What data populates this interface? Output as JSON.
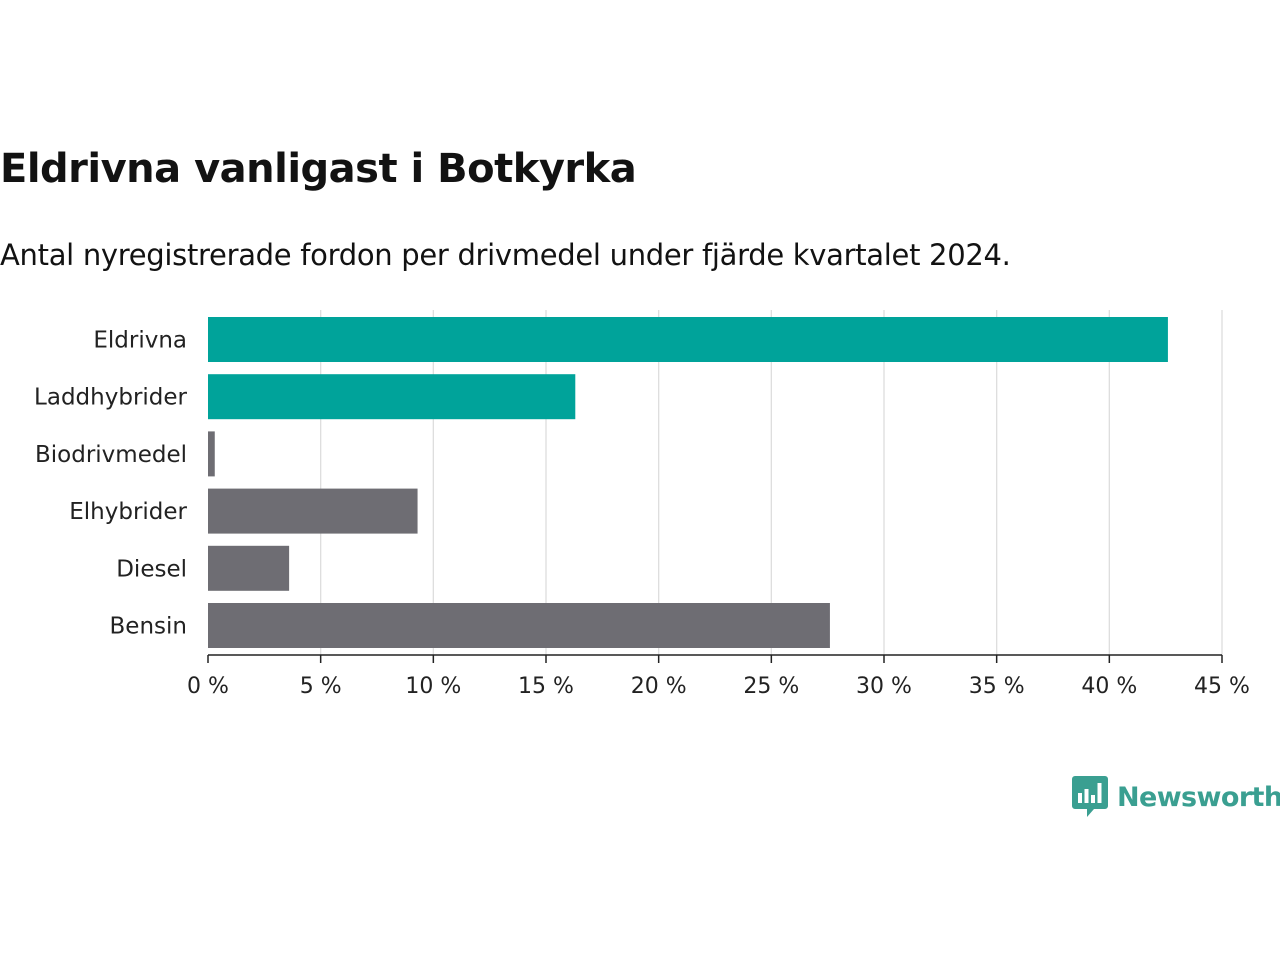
{
  "chart_data": {
    "type": "bar",
    "orientation": "horizontal",
    "title": "Eldrivna vanligast i Botkyrka",
    "subtitle": "Antal nyregistrerade fordon per drivmedel under fjärde kvartalet 2024.",
    "categories": [
      "Eldrivna",
      "Laddhybrider",
      "Biodrivmedel",
      "Elhybrider",
      "Diesel",
      "Bensin"
    ],
    "values": [
      42.6,
      16.3,
      0.3,
      9.3,
      3.6,
      27.6
    ],
    "highlight": [
      true,
      true,
      false,
      false,
      false,
      false
    ],
    "xlim": [
      0,
      45
    ],
    "xticks": [
      0,
      5,
      10,
      15,
      20,
      25,
      30,
      35,
      40,
      45
    ],
    "xtick_labels": [
      "0 %",
      "5 %",
      "10 %",
      "15 %",
      "20 %",
      "25 %",
      "30 %",
      "35 %",
      "40 %",
      "45 %"
    ],
    "xlabel": "",
    "ylabel": "",
    "grid": true,
    "colors": {
      "highlight": "#00a39a",
      "default": "#6e6d73",
      "grid": "#dddddd",
      "axis": "#222222"
    }
  },
  "branding": {
    "logo_text": "Newsworthy",
    "logo_color": "#3a9f91"
  }
}
